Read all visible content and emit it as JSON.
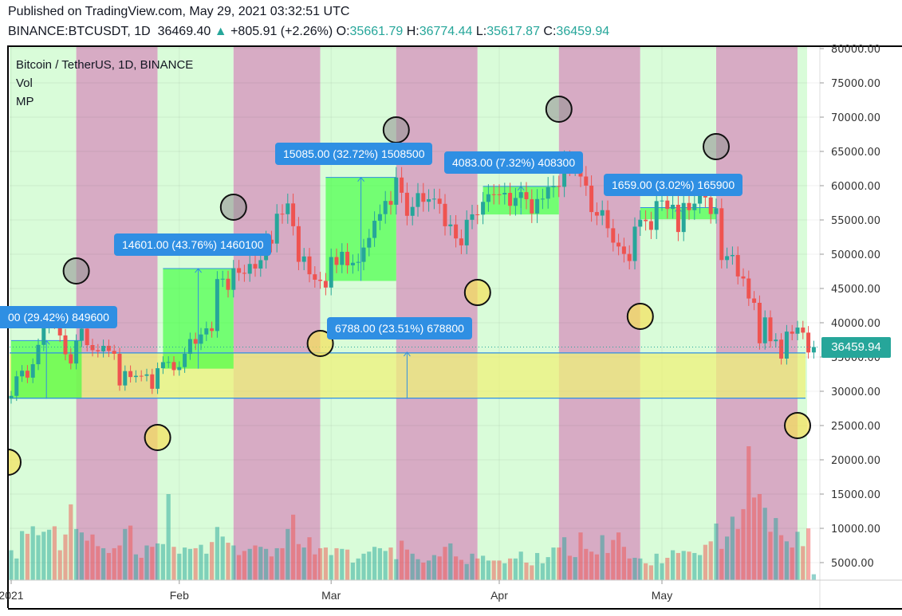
{
  "header": {
    "published": "Published on TradingView.com, May 29, 2021 03:32:51 UTC",
    "symbol": "BINANCE:BTCUSDT, 1D",
    "last": "36469.40",
    "change": "+805.91 (+2.26%)",
    "o_label": "O:",
    "open": "35661.79",
    "h_label": "H:",
    "high": "36774.44",
    "l_label": "L:",
    "low": "35617.87",
    "c_label": "C:",
    "close": "36459.94"
  },
  "legend": {
    "title": "Bitcoin / TetherUS, 1D, BINANCE",
    "vol": "Vol",
    "mp": "MP"
  },
  "colors": {
    "up": "#26a69a",
    "down": "#ef5350",
    "pink_band": "#d7abc4",
    "green_band": "#d9fcd9",
    "label_bg": "#2f8fe3",
    "zone": "#eef27a"
  },
  "range_labels": [
    {
      "text": "00 (29.42%) 849600"
    },
    {
      "text": "14601.00 (43.76%) 1460100"
    },
    {
      "text": "15085.00 (32.72%) 1508500"
    },
    {
      "text": "4083.00 (7.32%) 408300"
    },
    {
      "text": "1659.00 (3.02%) 165900"
    },
    {
      "text": "6788.00 (23.51%) 678800"
    }
  ],
  "current_price": "36459.94",
  "chart_data": {
    "type": "candlestick",
    "start_date": "2021-01-01",
    "first_open": 28923,
    "closes": [
      29331,
      32178,
      33000,
      31988,
      33949,
      36769,
      39432,
      40582,
      40088,
      38150,
      35404,
      34051,
      37371,
      39144,
      36742,
      35994,
      35828,
      36631,
      35891,
      35468,
      30850,
      32945,
      32078,
      32259,
      32254,
      32467,
      30366,
      33364,
      34252,
      34262,
      33092,
      33526,
      35466,
      37618,
      36936,
      38290,
      39186,
      38795,
      46374,
      46420,
      44807,
      47969,
      47287,
      47153,
      48577,
      47911,
      49133,
      52119,
      51552,
      55906,
      55841,
      57408,
      54087,
      48891,
      49676,
      47073,
      46276,
      46106,
      45135,
      49587,
      48440,
      50349,
      48374,
      48751,
      48882,
      50971,
      52375,
      54884,
      55851,
      57773,
      57221,
      61188,
      58968,
      55605,
      56900,
      58912,
      57648,
      58030,
      58102,
      57351,
      54083,
      54340,
      52303,
      51293,
      55025,
      55817,
      55777,
      57635,
      58746,
      58740,
      58720,
      58950,
      57059,
      58206,
      59054,
      58020,
      55947,
      58048,
      58102,
      59774,
      59964,
      59835,
      63554,
      62970,
      63159,
      61334,
      60006,
      56150,
      55633,
      56425,
      53787,
      51690,
      51125,
      50047,
      49004,
      54021,
      55033,
      54824,
      53555,
      57750,
      57828,
      56610,
      57213,
      53241,
      57473,
      56428,
      57380,
      58928,
      58280,
      55859,
      56704,
      49150,
      49716,
      49880,
      46760,
      46456,
      43538,
      42909,
      37002,
      40782,
      37304,
      37536,
      34770,
      38705,
      38402,
      39294,
      38556,
      35664,
      36460
    ],
    "volumes": [
      6800,
      5600,
      9600,
      9200,
      10300,
      9000,
      9500,
      9800,
      10300,
      6800,
      9100,
      13500,
      9900,
      9400,
      8200,
      9100,
      7400,
      7100,
      6400,
      7100,
      7500,
      9900,
      10400,
      6200,
      5700,
      7500,
      7300,
      7800,
      7700,
      15000,
      7300,
      6300,
      7200,
      7000,
      7100,
      7600,
      6300,
      8000,
      10200,
      8800,
      7900,
      7500,
      6100,
      6700,
      7000,
      7500,
      7300,
      7000,
      5900,
      7100,
      7100,
      9900,
      12000,
      7700,
      7200,
      8700,
      6200,
      7100,
      7200,
      6100,
      7100,
      7000,
      6900,
      5000,
      5600,
      6300,
      6600,
      7300,
      7100,
      6700,
      7200,
      5500,
      8200,
      6900,
      6300,
      5500,
      5000,
      5300,
      6100,
      5900,
      7300,
      7800,
      5900,
      5400,
      4800,
      6300,
      5600,
      6000,
      5300,
      5300,
      5300,
      4900,
      5600,
      5600,
      6600,
      5000,
      4600,
      6400,
      4900,
      5800,
      7200,
      7200,
      8700,
      6000,
      5800,
      9400,
      7000,
      6600,
      6200,
      9000,
      6400,
      8300,
      9400,
      7300,
      5600,
      5700,
      5600,
      4900,
      4600,
      6300,
      4900,
      5700,
      6800,
      6400,
      6700,
      6600,
      6400,
      6100,
      7600,
      8100,
      10700,
      7000,
      8800,
      11700,
      9900,
      12800,
      22000,
      14500,
      15000,
      13000,
      9500,
      11500,
      9000,
      8100,
      7200,
      9500,
      7400,
      10000,
      3300
    ],
    "price_ticks": [
      80000,
      75000,
      70000,
      65000,
      60000,
      55000,
      50000,
      45000,
      40000,
      35000,
      30000,
      25000,
      20000,
      15000,
      10000,
      5000
    ],
    "price_tick_labels": [
      "80000.00",
      "75000.00",
      "70000.00",
      "65000.00",
      "60000.00",
      "55000.00",
      "50000.00",
      "45000.00",
      "40000.00",
      "35000.00",
      "30000.00",
      "25000.00",
      "20000.00",
      "15000.00",
      "10000.00",
      "5000.00"
    ],
    "time_ticks": [
      {
        "day": 0,
        "label": "2021"
      },
      {
        "day": 31,
        "label": "Feb"
      },
      {
        "day": 59,
        "label": "Mar"
      },
      {
        "day": 90,
        "label": "Apr"
      },
      {
        "day": 120,
        "label": "May"
      }
    ],
    "new_moon_days": [
      12,
      41,
      71,
      101,
      130
    ],
    "full_moon_days": [
      -2,
      27,
      57,
      86,
      116,
      145
    ],
    "zone": {
      "low": 29000,
      "high": 35600
    },
    "ranges": [
      {
        "start_day": 0,
        "end_day": 13,
        "low": 28900,
        "high": 37400,
        "filled": true
      },
      {
        "start_day": 28,
        "end_day": 41,
        "low": 33300,
        "high": 47900,
        "filled": true
      },
      {
        "start_day": 58,
        "end_day": 71,
        "low": 46100,
        "high": 61200,
        "filled": true
      },
      {
        "start_day": 87,
        "end_day": 101,
        "low": 55800,
        "high": 59900,
        "filled": true
      },
      {
        "start_day": 116,
        "end_day": 130,
        "low": 55100,
        "high": 56800,
        "filled": true
      },
      {
        "start_day": 73,
        "end_day": 73,
        "low": 28900,
        "high": 35700,
        "filled": false
      }
    ]
  }
}
